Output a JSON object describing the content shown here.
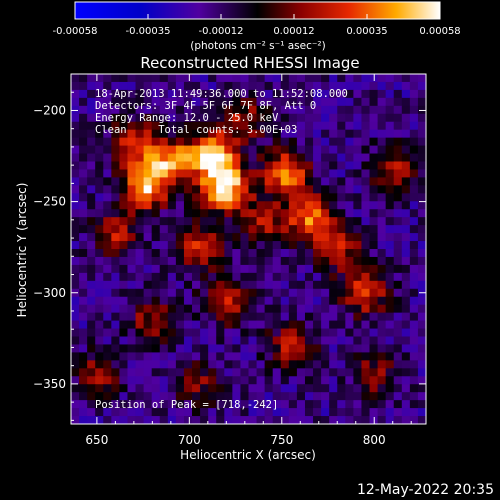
{
  "chart_data": {
    "type": "heatmap",
    "title": "Reconstructed RHESSI Image",
    "xlabel": "Heliocentric X (arcsec)",
    "ylabel": "Heliocentric Y (arcsec)",
    "x_ticks": [
      650,
      700,
      750,
      800
    ],
    "y_ticks": [
      -200,
      -250,
      -300,
      -350
    ],
    "xlim": [
      636,
      828
    ],
    "ylim": [
      -372,
      -180
    ],
    "colorbar": {
      "ticks": [
        "-0.00058",
        "-0.00035",
        "-0.00012",
        "0.00012",
        "0.00035",
        "0.00058"
      ],
      "range": [
        -0.00058,
        0.00058
      ],
      "units": "(photons cm⁻² s⁻¹ asec⁻²)"
    },
    "annotations": [
      "18-Apr-2013 11:49:36.000 to 11:52:08.000",
      "Detectors: 3F 4F 5F 6F 7F 8F, Att 0",
      "Energy Range: 12.0 - 25.0 keV",
      "Clean     Total counts: 3.00E+03"
    ],
    "peak_label": "Position of Peak = [718,-242]",
    "peak": [
      718,
      -242
    ],
    "sources": [
      {
        "x": 712,
        "y": -225,
        "amp": 1.0
      },
      {
        "x": 720,
        "y": -243,
        "amp": 0.95
      },
      {
        "x": 676,
        "y": -242,
        "amp": 0.85
      },
      {
        "x": 690,
        "y": -228,
        "amp": 0.7
      },
      {
        "x": 670,
        "y": -218,
        "amp": 0.6
      },
      {
        "x": 752,
        "y": -234,
        "amp": 0.75
      },
      {
        "x": 765,
        "y": -258,
        "amp": 0.7
      },
      {
        "x": 780,
        "y": -275,
        "amp": 0.55
      },
      {
        "x": 705,
        "y": -275,
        "amp": 0.55
      },
      {
        "x": 660,
        "y": -268,
        "amp": 0.5
      },
      {
        "x": 740,
        "y": -262,
        "amp": 0.45
      },
      {
        "x": 795,
        "y": -300,
        "amp": 0.6
      },
      {
        "x": 810,
        "y": -232,
        "amp": 0.5
      },
      {
        "x": 720,
        "y": -305,
        "amp": 0.5
      },
      {
        "x": 680,
        "y": -315,
        "amp": 0.45
      },
      {
        "x": 755,
        "y": -330,
        "amp": 0.5
      },
      {
        "x": 650,
        "y": -345,
        "amp": 0.4
      },
      {
        "x": 800,
        "y": -345,
        "amp": 0.4
      },
      {
        "x": 705,
        "y": -350,
        "amp": 0.35
      },
      {
        "x": 730,
        "y": -205,
        "amp": 0.45
      }
    ]
  },
  "footer_date": "12-May-2022 20:35"
}
